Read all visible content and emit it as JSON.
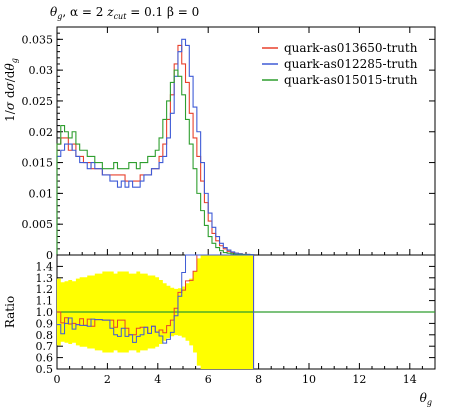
{
  "chart_data": {
    "title": "θ_g, α = 2 z_cut = 0.1 β = 0",
    "type": "line",
    "main": {
      "ylabel": "1/σ dσ/dθ_g",
      "ylim": [
        0,
        0.037
      ],
      "yticks": [
        0,
        0.005,
        0.01,
        0.015,
        0.02,
        0.025,
        0.03,
        0.035
      ],
      "ytick_labels": [
        "0",
        "0.005",
        "0.01",
        "0.015",
        "0.02",
        "0.025",
        "0.03",
        "0.035"
      ],
      "legend_position": "top-right",
      "series": [
        {
          "name": "quark-as013650-truth",
          "color": "#e8412c",
          "values": [
            0.018,
            0.019,
            0.019,
            0.017,
            0.018,
            0.016,
            0.016,
            0.015,
            0.015,
            0.014,
            0.014,
            0.014,
            0.013,
            0.013,
            0.013,
            0.013,
            0.013,
            0.013,
            0.012,
            0.012,
            0.012,
            0.012,
            0.013,
            0.013,
            0.013,
            0.014,
            0.014,
            0.016,
            0.018,
            0.022,
            0.026,
            0.031,
            0.034,
            0.031,
            0.028,
            0.023,
            0.019,
            0.016,
            0.012,
            0.0085,
            0.0055,
            0.0035,
            0.0023,
            0.0015,
            0.001,
            0.0006,
            0.0004,
            0.0003,
            0.0002,
            0.0001,
            0.0001,
            5e-05
          ]
        },
        {
          "name": "quark-as012285-truth",
          "color": "#3f5bd6",
          "values": [
            0.016,
            0.017,
            0.018,
            0.018,
            0.017,
            0.016,
            0.015,
            0.015,
            0.014,
            0.015,
            0.014,
            0.014,
            0.013,
            0.013,
            0.012,
            0.012,
            0.011,
            0.012,
            0.011,
            0.012,
            0.011,
            0.011,
            0.012,
            0.013,
            0.013,
            0.014,
            0.014,
            0.015,
            0.016,
            0.019,
            0.023,
            0.029,
            0.033,
            0.035,
            0.034,
            0.029,
            0.024,
            0.02,
            0.015,
            0.01,
            0.0068,
            0.0045,
            0.003,
            0.0019,
            0.0012,
            0.0008,
            0.0005,
            0.0003,
            0.0002,
            0.0001,
            0.0001,
            5e-05
          ]
        },
        {
          "name": "quark-as015015-truth",
          "color": "#2e9e2e",
          "values": [
            0.018,
            0.021,
            0.02,
            0.019,
            0.02,
            0.018,
            0.017,
            0.017,
            0.016,
            0.016,
            0.015,
            0.015,
            0.014,
            0.014,
            0.014,
            0.015,
            0.014,
            0.014,
            0.014,
            0.015,
            0.015,
            0.014,
            0.015,
            0.015,
            0.016,
            0.016,
            0.017,
            0.019,
            0.022,
            0.025,
            0.028,
            0.03,
            0.029,
            0.026,
            0.022,
            0.018,
            0.014,
            0.01,
            0.0072,
            0.0048,
            0.003,
            0.0019,
            0.0012,
            0.0007,
            0.0004,
            0.0003,
            0.0002,
            0.0001,
            0.0001,
            5e-05,
            3e-05,
            2e-05
          ]
        }
      ]
    },
    "ratio": {
      "ylabel": "Ratio",
      "ylim": [
        0.5,
        1.5
      ],
      "yticks": [
        0.5,
        0.6,
        0.7,
        0.8,
        0.9,
        1.0,
        1.1,
        1.2,
        1.3,
        1.4
      ],
      "ytick_labels": [
        "0.5",
        "0.6",
        "0.7",
        "0.8",
        "0.9",
        "1.0",
        "1.1",
        "1.2",
        "1.3",
        "1.4"
      ],
      "band_color": "#ffff00",
      "reference_line": 1.0,
      "reference_color": "#2e9e2e"
    },
    "x": {
      "xlabel": "θ_g",
      "xlim": [
        0,
        15
      ],
      "xticks": [
        0,
        2,
        4,
        6,
        8,
        10,
        12,
        14
      ],
      "xtick_labels": [
        "0",
        "2",
        "4",
        "6",
        "8",
        "10",
        "12",
        "14"
      ],
      "bin_width": 0.15
    }
  }
}
